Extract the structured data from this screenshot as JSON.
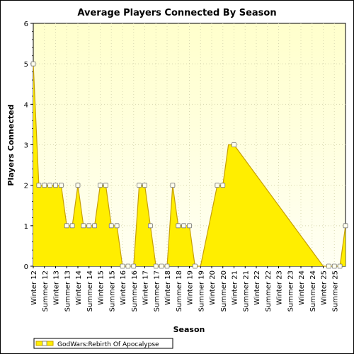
{
  "chart_data": {
    "type": "area",
    "title": "Average Players Connected By Season",
    "xlabel": "Season",
    "ylabel": "Players Connected",
    "ylim": [
      0,
      6
    ],
    "yticks": [
      "0",
      "1",
      "2",
      "3",
      "4",
      "5",
      "6"
    ],
    "categories": [
      "Winter 12",
      "Summer 12",
      "Winter 13",
      "Summer 13",
      "Winter 14",
      "Summer 14",
      "Winter 15",
      "Summer 15",
      "Winter 16",
      "Summer 16",
      "Winter 17",
      "Summer 17",
      "Winter 18",
      "Summer 18",
      "Winter 19",
      "Summer 19",
      "Winter 20",
      "Summer 20",
      "Winter 21",
      "Summer 21",
      "Winter 22",
      "Summer 22",
      "Winter 23",
      "Summer 23",
      "Winter 24",
      "Summer 24",
      "Winter 25",
      "Summer 25"
    ],
    "series": [
      {
        "name": "GodWars:Rebirth Of Apocalypse",
        "color": "#ffee00",
        "line_color": "#c8a000",
        "x": [
          0,
          0.5,
          1,
          1.5,
          2,
          2.5,
          3,
          3.5,
          4,
          4.5,
          5,
          5.5,
          6,
          6.5,
          7,
          7.5,
          8,
          8.5,
          9,
          9.5,
          10,
          10.5,
          11,
          11.5,
          12,
          12.5,
          13,
          13.5,
          14,
          14.5,
          15,
          16.5,
          17,
          17.5,
          18,
          26,
          26.5,
          27,
          27.5,
          28
        ],
        "values": [
          5,
          2,
          2,
          2,
          2,
          2,
          1,
          1,
          2,
          1,
          1,
          1,
          2,
          2,
          1,
          1,
          0,
          0,
          0,
          2,
          2,
          1,
          0,
          0,
          0,
          2,
          1,
          1,
          1,
          0,
          0,
          2,
          2,
          3,
          3,
          0,
          0,
          0,
          0,
          1
        ],
        "markers": [
          1,
          1,
          1,
          1,
          1,
          1,
          1,
          1,
          1,
          1,
          1,
          1,
          1,
          1,
          1,
          1,
          1,
          1,
          1,
          1,
          1,
          1,
          1,
          1,
          1,
          1,
          1,
          1,
          1,
          1,
          0,
          1,
          1,
          0,
          1,
          0,
          1,
          1,
          1,
          1
        ]
      }
    ],
    "grid": true,
    "legend_position": "bottom-left",
    "background_color": "#ffffdd"
  }
}
